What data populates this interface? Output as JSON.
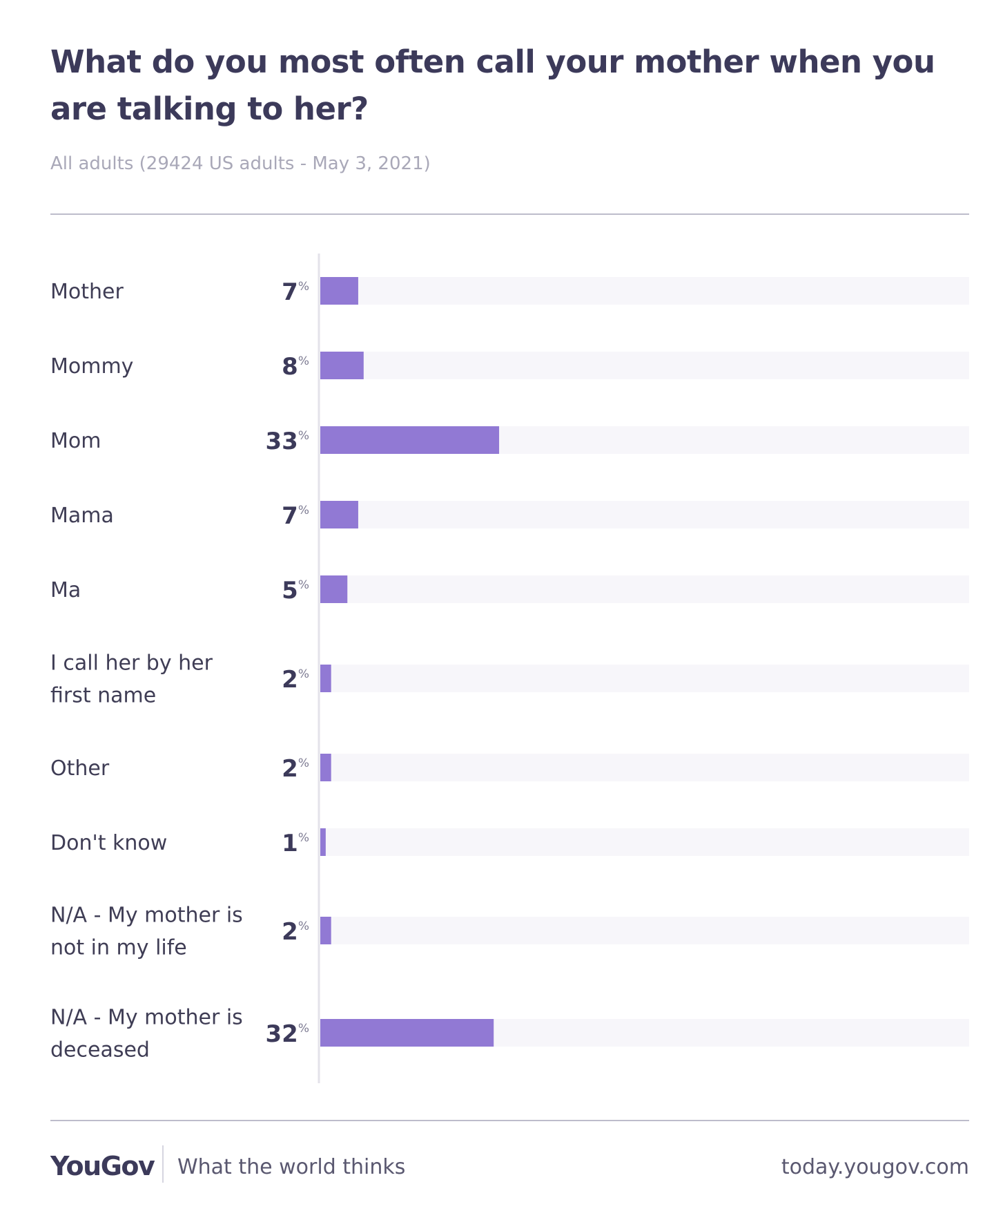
{
  "header": {
    "title": "What do you most often call your mother when you are talking to her?",
    "subtitle": "All adults (29424 US adults - May 3, 2021)"
  },
  "chart_data": {
    "type": "bar",
    "orientation": "horizontal",
    "categories": [
      "Mother",
      "Mommy",
      "Mom",
      "Mama",
      "Ma",
      "I call her by her first name",
      "Other",
      "Don't know",
      "N/A - My mother is not in my life",
      "N/A - My mother is deceased"
    ],
    "values": [
      7,
      8,
      33,
      7,
      5,
      2,
      2,
      1,
      2,
      32
    ],
    "value_suffix": "%",
    "xlim": [
      0,
      100
    ],
    "bar_color": "#9179d4",
    "track_color": "#f7f6fa",
    "grid": false
  },
  "footer": {
    "logo": "YouGov",
    "tagline": "What the world thinks",
    "site": "today.yougov.com"
  }
}
